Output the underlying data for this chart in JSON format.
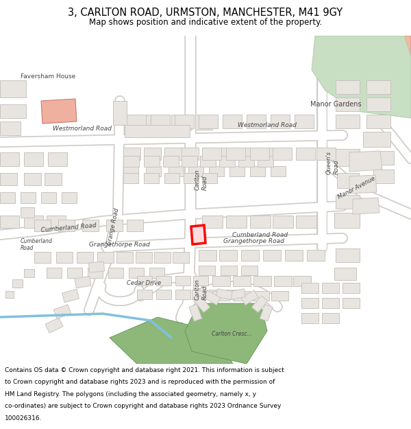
{
  "title_line1": "3, CARLTON ROAD, URMSTON, MANCHESTER, M41 9GY",
  "title_line2": "Map shows position and indicative extent of the property.",
  "footer_text": "Contains OS data © Crown copyright and database right 2021. This information is subject to Crown copyright and database rights 2023 and is reproduced with the permission of HM Land Registry. The polygons (including the associated geometry, namely x, y co-ordinates) are subject to Crown copyright and database rights 2023 Ordnance Survey 100026316.",
  "bg_color": "#f2f0ed",
  "road_color": "#ffffff",
  "road_outline": "#d0ccc8",
  "building_fill": "#e8e4df",
  "building_outline": "#c8c4bf",
  "highlight_outline": "#ff0000",
  "highlight_fill": "#ffdddd",
  "green_fill": "#8db87a",
  "green_fill2": "#c8dfc4",
  "salmon_fill": "#f5b8a0",
  "blue_line": "#80c0e0",
  "footer_bg": "#ffffff",
  "title_bg": "#ffffff"
}
